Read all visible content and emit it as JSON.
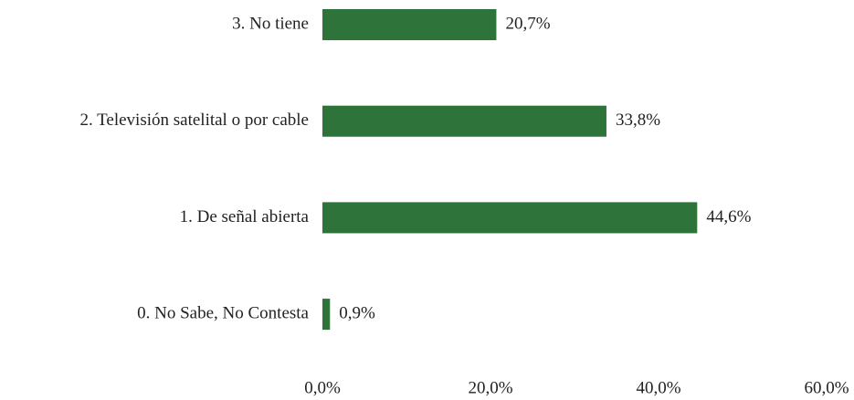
{
  "chart_data": {
    "type": "barh",
    "categories": [
      "3. No tiene",
      "2. Televisión satelital o por cable",
      "1. De señal abierta",
      "0. No Sabe, No Contesta"
    ],
    "values": [
      20.7,
      33.8,
      44.6,
      0.9
    ],
    "value_labels": [
      "20,7%",
      "33,8%",
      "44,6%",
      "0,9%"
    ],
    "color": "#2e7339",
    "xlim": [
      0,
      60
    ],
    "xticks": [
      {
        "value": 0,
        "label": "0,0%"
      },
      {
        "value": 20,
        "label": "20,0%"
      },
      {
        "value": 40,
        "label": "40,0%"
      },
      {
        "value": 60,
        "label": "60,0%"
      }
    ],
    "grid": false
  }
}
